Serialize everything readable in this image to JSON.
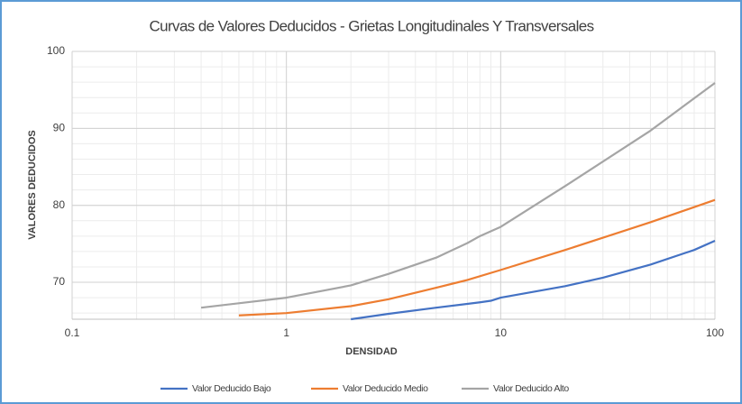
{
  "chart_data": {
    "type": "line",
    "title": "Curvas de Valores Deducidos - Grietas Longitudinales Y Transversales",
    "xlabel": "DENSIDAD",
    "ylabel": "VALORES DEDUCIDOS",
    "xscale": "log",
    "xlim": [
      0.1,
      100
    ],
    "xticks": [
      0.1,
      1,
      10,
      100
    ],
    "ylim": [
      65.2,
      100
    ],
    "yticks": [
      70,
      80,
      90,
      100
    ],
    "grid": true,
    "minor_grid": true,
    "legend": "bottom",
    "series": [
      {
        "name": "Valor Deducido Bajo",
        "color": "#4472c4",
        "x": [
          2,
          3,
          5,
          8,
          9,
          10,
          20,
          30,
          50,
          80,
          100
        ],
        "values": [
          65.2,
          65.9,
          66.7,
          67.4,
          67.6,
          68.0,
          69.5,
          70.6,
          72.3,
          74.2,
          75.4
        ]
      },
      {
        "name": "Valor Deducido Medio",
        "color": "#ed7d31",
        "x": [
          0.6,
          1,
          2,
          3,
          5,
          7,
          10,
          20,
          50,
          100
        ],
        "values": [
          65.7,
          66.0,
          66.9,
          67.8,
          69.3,
          70.3,
          71.6,
          74.2,
          77.8,
          80.7
        ]
      },
      {
        "name": "Valor Deducido Alto",
        "color": "#a5a5a5",
        "x": [
          0.4,
          1,
          2,
          3,
          5,
          7,
          8,
          10,
          20,
          50,
          100
        ],
        "values": [
          66.7,
          68.0,
          69.6,
          71.1,
          73.2,
          75.1,
          76.0,
          77.2,
          82.5,
          89.7,
          95.9
        ]
      }
    ]
  }
}
